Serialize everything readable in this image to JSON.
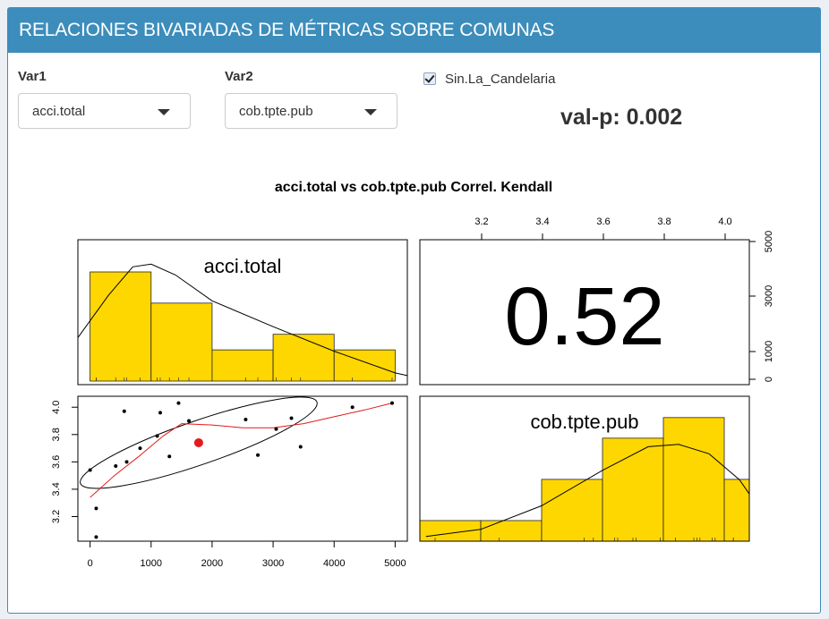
{
  "header": {
    "title": "RELACIONES BIVARIADAS DE MÉTRICAS SOBRE COMUNAS"
  },
  "controls": {
    "var1": {
      "label": "Var1",
      "value": "acci.total"
    },
    "var2": {
      "label": "Var2",
      "value": "cob.tpte.pub"
    },
    "checkbox": {
      "label": "Sin.La_Candelaria",
      "checked": true
    },
    "pvalue": "val-p: 0.002"
  },
  "colors": {
    "header": "#3c8dbc",
    "bars": "#ffd700",
    "smooth": "#e41a1c",
    "highlight": "#e41a1c"
  },
  "chart_data": {
    "type": "scatter",
    "title": "acci.total vs cob.tpte.pub Correl. Kendall",
    "correlation": "0.52",
    "var1_name": "acci.total",
    "var2_name": "cob.tpte.pub",
    "x_ticks": [
      "0",
      "1000",
      "2000",
      "3000",
      "4000",
      "5000"
    ],
    "y_ticks": [
      "3.2",
      "3.4",
      "3.6",
      "3.8",
      "4.0"
    ],
    "top_ticks": [
      "3.2",
      "3.4",
      "3.6",
      "3.8",
      "4.0"
    ],
    "right_ticks": [
      "0",
      "1000",
      "3000",
      "5000"
    ],
    "xlim": [
      -200,
      5200
    ],
    "ylim": [
      3.02,
      4.08
    ],
    "points": [
      {
        "x": 0,
        "y": 3.54
      },
      {
        "x": 100,
        "y": 3.05
      },
      {
        "x": 100,
        "y": 3.26
      },
      {
        "x": 420,
        "y": 3.57
      },
      {
        "x": 560,
        "y": 3.97
      },
      {
        "x": 600,
        "y": 3.6
      },
      {
        "x": 820,
        "y": 3.7
      },
      {
        "x": 1100,
        "y": 3.79
      },
      {
        "x": 1150,
        "y": 3.96
      },
      {
        "x": 1300,
        "y": 3.64
      },
      {
        "x": 1450,
        "y": 4.03
      },
      {
        "x": 1620,
        "y": 3.9
      },
      {
        "x": 2550,
        "y": 3.91
      },
      {
        "x": 2750,
        "y": 3.65
      },
      {
        "x": 3050,
        "y": 3.84
      },
      {
        "x": 3300,
        "y": 3.92
      },
      {
        "x": 3450,
        "y": 3.71
      },
      {
        "x": 4300,
        "y": 4.0
      },
      {
        "x": 4950,
        "y": 4.03
      }
    ],
    "highlight_point": {
      "x": 1780,
      "y": 3.74
    },
    "smooth_line": [
      {
        "x": 0,
        "y": 3.34
      },
      {
        "x": 400,
        "y": 3.5
      },
      {
        "x": 800,
        "y": 3.64
      },
      {
        "x": 1200,
        "y": 3.79
      },
      {
        "x": 1500,
        "y": 3.88
      },
      {
        "x": 2000,
        "y": 3.87
      },
      {
        "x": 2500,
        "y": 3.85
      },
      {
        "x": 3000,
        "y": 3.85
      },
      {
        "x": 3500,
        "y": 3.88
      },
      {
        "x": 4000,
        "y": 3.93
      },
      {
        "x": 4500,
        "y": 3.98
      },
      {
        "x": 4950,
        "y": 4.03
      }
    ],
    "ellipse": {
      "cx": 1780,
      "cy": 3.74,
      "rx_data": 2050,
      "ry_data": 0.16,
      "angle_deg": -19
    },
    "hist_var1": {
      "bins": [
        0,
        1000,
        2000,
        3000,
        4000,
        5000
      ],
      "counts": [
        7,
        5,
        2,
        3,
        2
      ],
      "max": 7,
      "density_curve": [
        [
          -200,
          0.32
        ],
        [
          300,
          0.63
        ],
        [
          700,
          0.84
        ],
        [
          1000,
          0.86
        ],
        [
          1400,
          0.78
        ],
        [
          2000,
          0.59
        ],
        [
          3000,
          0.4
        ],
        [
          4000,
          0.22
        ],
        [
          5000,
          0.06
        ],
        [
          5200,
          0.04
        ]
      ]
    },
    "hist_var2": {
      "bins": [
        3.0,
        3.2,
        3.4,
        3.6,
        3.8,
        4.0,
        4.2
      ],
      "counts": [
        1,
        1,
        3,
        5,
        6,
        3
      ],
      "max": 6.6,
      "density_curve": [
        [
          3.02,
          0.04
        ],
        [
          3.2,
          0.1
        ],
        [
          3.4,
          0.3
        ],
        [
          3.6,
          0.6
        ],
        [
          3.75,
          0.8
        ],
        [
          3.85,
          0.82
        ],
        [
          3.95,
          0.74
        ],
        [
          4.05,
          0.52
        ],
        [
          4.1,
          0.4
        ]
      ]
    }
  }
}
